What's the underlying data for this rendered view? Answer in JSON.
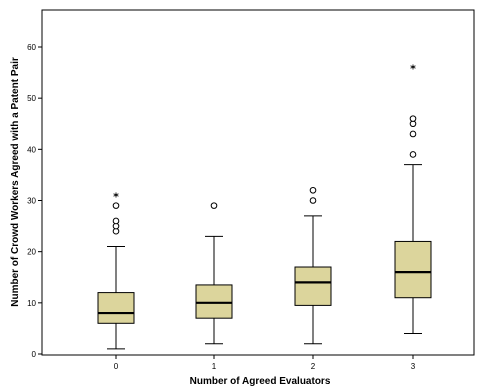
{
  "chart_data": {
    "type": "boxplot",
    "title": "",
    "xlabel": "Number of Agreed Evaluators",
    "ylabel": "Number of Crowd Workers Agreed with a Patent Pair",
    "ylim": [
      0,
      68
    ],
    "yticks": [
      0,
      10,
      20,
      30,
      40,
      50,
      60
    ],
    "grid": false,
    "categories": [
      "0",
      "1",
      "2",
      "3"
    ],
    "boxes": [
      {
        "category": "0",
        "whisker_low": 1,
        "q1": 6,
        "median": 8,
        "q3": 12,
        "whisker_high": 21,
        "outliers": [
          24,
          25,
          26,
          29
        ],
        "extremes": [
          31
        ]
      },
      {
        "category": "1",
        "whisker_low": 2,
        "q1": 7,
        "median": 10,
        "q3": 13.5,
        "whisker_high": 23,
        "outliers": [
          29
        ],
        "extremes": []
      },
      {
        "category": "2",
        "whisker_low": 2,
        "q1": 9.5,
        "median": 14,
        "q3": 17,
        "whisker_high": 27,
        "outliers": [
          30,
          32
        ],
        "extremes": []
      },
      {
        "category": "3",
        "whisker_low": 4,
        "q1": 11,
        "median": 16,
        "q3": 22,
        "whisker_high": 37,
        "outliers": [
          39,
          43,
          45,
          46
        ],
        "extremes": [
          56
        ]
      }
    ],
    "colors": {
      "box_fill": "#dcd59c",
      "stroke": "#000000",
      "background": "#ffffff"
    },
    "outlier_marker": "○",
    "extreme_marker": "*"
  }
}
